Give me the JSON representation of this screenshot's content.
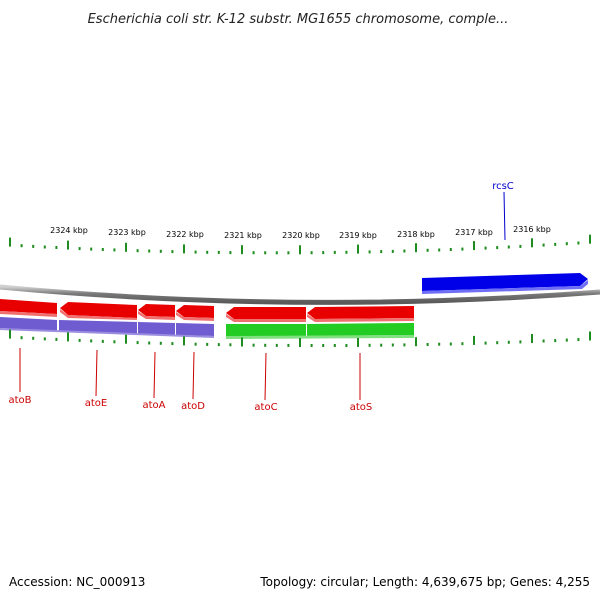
{
  "title": "Escherichia coli str. K-12 substr. MG1655 chromosome, comple...",
  "footer": {
    "accession": "Accession: NC_000913",
    "summary": "Topology: circular; Length: 4,639,675 bp; Genes: 4,255"
  },
  "colors": {
    "backbone": "#8a8a8a",
    "tick": "#1e8c1e",
    "forward_gene": "#0000e8",
    "reverse_gene": "#e80000",
    "operon_purple": "#6e5cd0",
    "operon_green": "#22cc22",
    "label_red": "#cc0000",
    "label_blue": "#0000cc"
  },
  "axis": {
    "unit": "kbp",
    "ticks": [
      "2324 kbp",
      "2323 kbp",
      "2322 kbp",
      "2321 kbp",
      "2320 kbp",
      "2319 kbp",
      "2318 kbp",
      "2317 kbp",
      "2316 kbp"
    ]
  },
  "genes": [
    {
      "name": "rcsC",
      "strand": "forward"
    },
    {
      "name": "atoB",
      "strand": "reverse"
    },
    {
      "name": "atoE",
      "strand": "reverse"
    },
    {
      "name": "atoA",
      "strand": "reverse"
    },
    {
      "name": "atoD",
      "strand": "reverse"
    },
    {
      "name": "atoC",
      "strand": "reverse"
    },
    {
      "name": "atoS",
      "strand": "reverse"
    }
  ]
}
